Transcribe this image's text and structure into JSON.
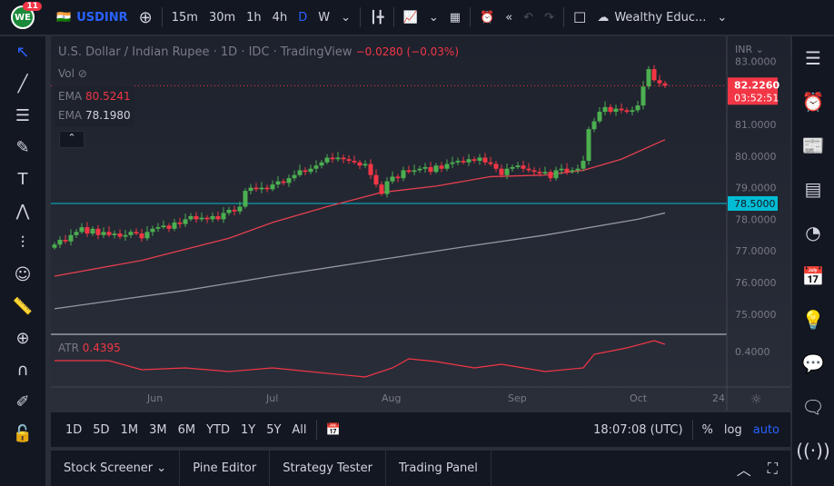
{
  "topbar": {
    "notif_count": "11",
    "logo": "WE",
    "symbol": "USDINR",
    "intervals": [
      "15m",
      "30m",
      "1h",
      "4h",
      "D",
      "W"
    ],
    "active_interval": "D",
    "layout_name": "Wealthy Educ..."
  },
  "legend": {
    "title": "U.S. Dollar / Indian Rupee · 1D · IDC · TradingView",
    "change": "−0.0280 (−0.03%)",
    "vol": "Vol",
    "ema1_label": "EMA",
    "ema1_value": "80.5241",
    "ema2_label": "EMA",
    "ema2_value": "78.1980",
    "atr_label": "ATR",
    "atr_value": "0.4395"
  },
  "price_axis": {
    "currency": "INR",
    "ticks": [
      "83.0000",
      "81.0000",
      "80.0000",
      "79.0000",
      "78.0000",
      "77.0000",
      "76.0000",
      "75.0000"
    ],
    "last_price": "82.2260",
    "countdown": "03:52:51",
    "hline": "78.5000",
    "atr_tick": "0.4000"
  },
  "time_axis": [
    "Jun",
    "Jul",
    "Aug",
    "Sep",
    "Oct",
    "24"
  ],
  "timeframes": [
    "1D",
    "5D",
    "1M",
    "3M",
    "6M",
    "YTD",
    "1Y",
    "5Y",
    "All"
  ],
  "clock": "18:07:08 (UTC)",
  "scale_opts": {
    "percent": "%",
    "log": "log",
    "auto": "auto"
  },
  "bottom_tabs": [
    "Stock Screener",
    "Pine Editor",
    "Strategy Tester",
    "Trading Panel"
  ],
  "colors": {
    "up": "#4caf50",
    "down": "#f23645",
    "ema_fast": "#e5404f",
    "ema_slow": "#9598a1",
    "hline": "#00bcd4",
    "accent": "#2962ff"
  },
  "chart_data": {
    "type": "candlestick",
    "ylim": [
      74.5,
      83.1
    ],
    "hline": 78.5,
    "closes": [
      77.2,
      77.35,
      77.3,
      77.5,
      77.6,
      77.75,
      77.55,
      77.7,
      77.5,
      77.6,
      77.5,
      77.55,
      77.45,
      77.5,
      77.6,
      77.55,
      77.4,
      77.6,
      77.7,
      77.75,
      77.8,
      77.7,
      77.9,
      77.85,
      78.0,
      78.1,
      78.0,
      78.05,
      78.0,
      78.1,
      78.0,
      78.2,
      78.3,
      78.25,
      78.4,
      78.9,
      79.0,
      78.95,
      79.0,
      78.95,
      79.1,
      79.2,
      79.15,
      79.3,
      79.4,
      79.55,
      79.5,
      79.6,
      79.7,
      79.8,
      79.95,
      79.9,
      79.95,
      79.9,
      79.85,
      79.8,
      79.7,
      79.75,
      79.4,
      79.1,
      78.8,
      79.2,
      79.35,
      79.3,
      79.55,
      79.5,
      79.55,
      79.6,
      79.65,
      79.5,
      79.7,
      79.6,
      79.75,
      79.8,
      79.85,
      79.8,
      79.9,
      79.85,
      79.95,
      79.8,
      79.75,
      79.6,
      79.4,
      79.6,
      79.65,
      79.7,
      79.6,
      79.55,
      79.5,
      79.45,
      79.5,
      79.3,
      79.55,
      79.6,
      79.5,
      79.55,
      79.6,
      79.85,
      80.85,
      81.1,
      81.4,
      81.55,
      81.4,
      81.5,
      81.45,
      81.4,
      81.45,
      81.6,
      82.2,
      82.75,
      82.4,
      82.3,
      82.226
    ],
    "ema_fast": [
      [
        0,
        76.2
      ],
      [
        16,
        76.7
      ],
      [
        32,
        77.4
      ],
      [
        40,
        77.9
      ],
      [
        50,
        78.4
      ],
      [
        60,
        78.85
      ],
      [
        70,
        79.05
      ],
      [
        80,
        79.35
      ],
      [
        90,
        79.4
      ],
      [
        97,
        79.55
      ],
      [
        104,
        79.9
      ],
      [
        112,
        80.52
      ]
    ],
    "ema_slow": [
      [
        0,
        75.17
      ],
      [
        24,
        75.75
      ],
      [
        40,
        76.2
      ],
      [
        57,
        76.65
      ],
      [
        74,
        77.1
      ],
      [
        90,
        77.5
      ],
      [
        107,
        78.0
      ],
      [
        112,
        78.2
      ]
    ],
    "atr": [
      [
        0,
        0.35
      ],
      [
        10,
        0.35
      ],
      [
        16,
        0.3
      ],
      [
        24,
        0.31
      ],
      [
        32,
        0.29
      ],
      [
        40,
        0.31
      ],
      [
        45,
        0.295
      ],
      [
        57,
        0.26
      ],
      [
        62,
        0.31
      ],
      [
        65,
        0.36
      ],
      [
        70,
        0.345
      ],
      [
        77,
        0.31
      ],
      [
        82,
        0.33
      ],
      [
        90,
        0.29
      ],
      [
        97,
        0.31
      ],
      [
        99,
        0.385
      ],
      [
        105,
        0.42
      ],
      [
        110,
        0.46
      ],
      [
        112,
        0.44
      ]
    ]
  }
}
